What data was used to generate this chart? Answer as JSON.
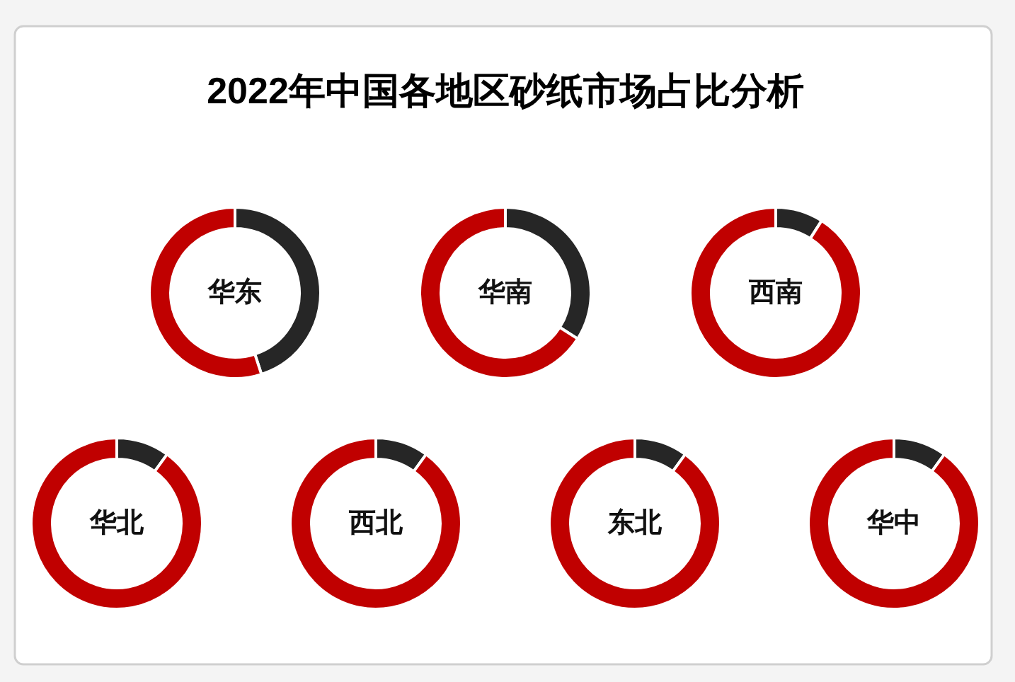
{
  "chart_data": [
    {
      "type": "other",
      "title": "2022年中国各地区砂纸市场占比分析"
    },
    {
      "type": "donut",
      "title": "华东",
      "categories": [
        null,
        null
      ],
      "values": [
        45,
        55
      ],
      "colors": [
        "#262626",
        "#c00000"
      ]
    },
    {
      "type": "donut",
      "title": "华南",
      "categories": [
        null,
        null
      ],
      "values": [
        34,
        66
      ],
      "colors": [
        "#262626",
        "#c00000"
      ]
    },
    {
      "type": "donut",
      "title": "西南",
      "categories": [
        null,
        null
      ],
      "values": [
        9,
        91
      ],
      "colors": [
        "#262626",
        "#c00000"
      ]
    },
    {
      "type": "donut",
      "title": "华北",
      "categories": [
        null,
        null
      ],
      "values": [
        10,
        90
      ],
      "colors": [
        "#262626",
        "#c00000"
      ]
    },
    {
      "type": "donut",
      "title": "西北",
      "categories": [
        null,
        null
      ],
      "values": [
        10,
        90
      ],
      "colors": [
        "#262626",
        "#c00000"
      ]
    },
    {
      "type": "donut",
      "title": "东北",
      "categories": [
        null,
        null
      ],
      "values": [
        10,
        90
      ],
      "colors": [
        "#262626",
        "#c00000"
      ]
    },
    {
      "type": "donut",
      "title": "华中",
      "categories": [
        null,
        null
      ],
      "values": [
        10,
        90
      ],
      "colors": [
        "#262626",
        "#c00000"
      ]
    }
  ]
}
